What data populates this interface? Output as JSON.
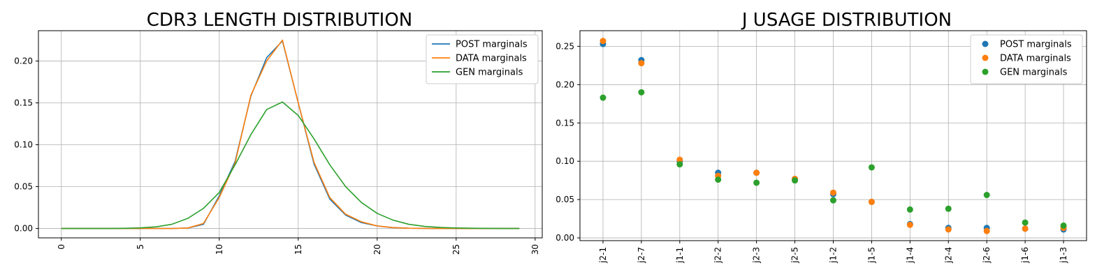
{
  "chart_data": [
    {
      "type": "line",
      "title": "CDR3 LENGTH DISTRIBUTION",
      "xlabel": "",
      "ylabel": "",
      "xlim": [
        -1.45,
        30.45
      ],
      "ylim": [
        -0.0112,
        0.2362
      ],
      "xticks": [
        0,
        5,
        10,
        15,
        20,
        25,
        30
      ],
      "yticks": [
        0.0,
        0.05,
        0.1,
        0.15,
        0.2
      ],
      "grid": true,
      "legend": "top-right",
      "x": [
        0,
        1,
        2,
        3,
        4,
        5,
        6,
        7,
        8,
        9,
        10,
        11,
        12,
        13,
        14,
        15,
        16,
        17,
        18,
        19,
        20,
        21,
        22,
        23,
        24,
        25,
        26,
        27,
        28,
        29
      ],
      "series": [
        {
          "name": "POST marginals",
          "color": "#1f77b4",
          "values": [
            0,
            0,
            0,
            0,
            0,
            0,
            0,
            0,
            0.0005,
            0.005,
            0.039,
            0.08,
            0.158,
            0.204,
            0.224,
            0.15,
            0.077,
            0.035,
            0.016,
            0.007,
            0.003,
            0.001,
            0.0003,
            0.0001,
            0,
            0,
            0,
            0,
            0,
            0
          ]
        },
        {
          "name": "DATA marginals",
          "color": "#ff7f0e",
          "values": [
            0,
            0,
            0,
            0,
            0,
            0,
            0,
            0,
            0.0005,
            0.006,
            0.037,
            0.078,
            0.159,
            0.2,
            0.225,
            0.15,
            0.079,
            0.037,
            0.017,
            0.008,
            0.003,
            0.001,
            0.0003,
            0.0001,
            0,
            0,
            0,
            0,
            0,
            0
          ]
        },
        {
          "name": "GEN marginals",
          "color": "#2ca02c",
          "values": [
            0,
            0,
            0,
            0,
            0.0002,
            0.0007,
            0.002,
            0.005,
            0.012,
            0.024,
            0.043,
            0.076,
            0.112,
            0.142,
            0.151,
            0.135,
            0.107,
            0.076,
            0.05,
            0.031,
            0.018,
            0.01,
            0.005,
            0.0025,
            0.0012,
            0.0006,
            0.0003,
            0.0001,
            0,
            0
          ]
        }
      ]
    },
    {
      "type": "scatter",
      "title": "J USAGE DISTRIBUTION",
      "xlabel": "",
      "ylabel": "",
      "ylim": [
        -0.0036,
        0.2704
      ],
      "yticks": [
        0.0,
        0.05,
        0.1,
        0.15,
        0.2,
        0.25
      ],
      "grid": true,
      "legend": "top-right",
      "categories": [
        "j2-1",
        "j2-7",
        "j1-1",
        "j2-2",
        "j2-3",
        "j2-5",
        "j1-2",
        "j1-5",
        "j1-4",
        "j2-4",
        "j2-6",
        "j1-6",
        "j1-3"
      ],
      "series": [
        {
          "name": "POST marginals",
          "color": "#1f77b4",
          "values": [
            0.253,
            0.232,
            0.1,
            0.085,
            0.085,
            0.077,
            0.057,
            0.047,
            0.018,
            0.013,
            0.013,
            0.012,
            0.011
          ]
        },
        {
          "name": "DATA marginals",
          "color": "#ff7f0e",
          "values": [
            0.257,
            0.228,
            0.102,
            0.081,
            0.085,
            0.077,
            0.059,
            0.047,
            0.017,
            0.011,
            0.009,
            0.012,
            0.013
          ]
        },
        {
          "name": "GEN marginals",
          "color": "#2ca02c",
          "values": [
            0.183,
            0.19,
            0.096,
            0.076,
            0.072,
            0.075,
            0.049,
            0.092,
            0.037,
            0.038,
            0.056,
            0.02,
            0.016
          ]
        }
      ]
    }
  ]
}
